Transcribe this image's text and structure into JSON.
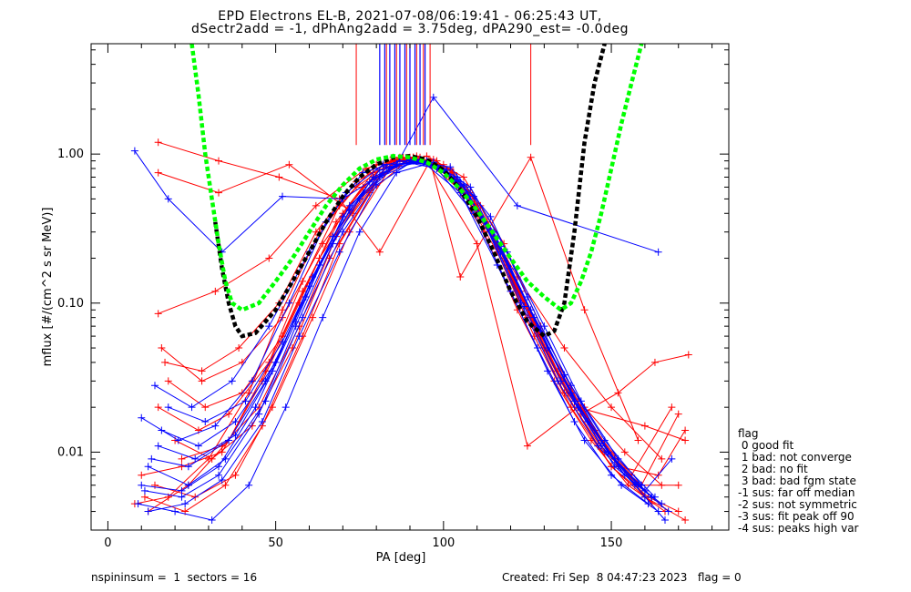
{
  "header": {
    "title_line1": "EPD Electrons EL-B, 2021-07-08/06:19:41 - 06:25:43 UT,",
    "title_line2": "dSectr2add = -1, dPhAng2add = 3.75deg, dPA290_est=  -0.0deg"
  },
  "footer": {
    "left": "nspininsum =  1  sectors = 16",
    "right": "Created: Fri Sep  8 04:47:23 2023   flag = 0"
  },
  "legend": {
    "title": "flag",
    "items": [
      " 0 good fit",
      " 1 bad: not converge",
      " 2 bad: no fit",
      " 3 bad: bad fgm state",
      "-1 sus: far off median",
      "-2 sus: not symmetric",
      "-3 sus: fit peak off 90",
      "-4 sus: peaks high var"
    ]
  },
  "colors": {
    "red_series": "#ff0000",
    "blue_series": "#0000ff",
    "fit_black": "#000000",
    "fit_green": "#00ff00",
    "axes": "#000000"
  },
  "chart_data": {
    "type": "line",
    "xlabel": "PA [deg]",
    "ylabel": "mflux [#/(cm^2 s sr MeV)]",
    "xlim": [
      -5,
      185
    ],
    "ylim": [
      0.003,
      5.5
    ],
    "yscale": "log",
    "xticks": [
      0,
      50,
      100,
      150
    ],
    "xtick_labels": [
      "0",
      "50",
      "100",
      "150"
    ],
    "yticks": [
      0.01,
      0.1,
      1.0
    ],
    "ytick_labels": [
      "0.01",
      "0.10",
      "1.00"
    ],
    "series": [
      {
        "color": "red",
        "x": [
          8,
          18,
          30,
          42,
          52,
          63,
          74,
          85,
          96,
          106,
          117,
          128,
          139,
          150,
          161,
          170
        ],
        "y": [
          0.0045,
          0.005,
          0.009,
          0.025,
          0.09,
          0.3,
          0.6,
          0.9,
          0.85,
          0.55,
          0.22,
          0.06,
          0.02,
          0.008,
          0.005,
          0.004
        ]
      },
      {
        "color": "red",
        "x": [
          15,
          27,
          36,
          48,
          58,
          69,
          80,
          91,
          101,
          112,
          122,
          133,
          144,
          155,
          166
        ],
        "y": [
          0.02,
          0.014,
          0.018,
          0.04,
          0.14,
          0.45,
          0.85,
          0.95,
          0.75,
          0.3,
          0.09,
          0.03,
          0.012,
          0.006,
          0.004
        ]
      },
      {
        "color": "red",
        "x": [
          15,
          33,
          51,
          69,
          81,
          96,
          105,
          126,
          142,
          158
        ],
        "y": [
          1.2,
          0.9,
          0.7,
          0.5,
          0.22,
          0.9,
          0.15,
          0.95,
          0.09,
          0.012
        ]
      },
      {
        "color": "red",
        "x": [
          15,
          33,
          54,
          73,
          85,
          95,
          110,
          125,
          140,
          160,
          172
        ],
        "y": [
          0.75,
          0.55,
          0.85,
          0.4,
          0.95,
          0.9,
          0.25,
          0.011,
          0.02,
          0.015,
          0.012
        ]
      },
      {
        "color": "red",
        "x": [
          15,
          32,
          48,
          62,
          77,
          88,
          99,
          110,
          122,
          136,
          150,
          165
        ],
        "y": [
          0.085,
          0.12,
          0.2,
          0.45,
          0.8,
          0.95,
          0.8,
          0.45,
          0.15,
          0.05,
          0.02,
          0.009
        ]
      },
      {
        "color": "red",
        "x": [
          16,
          28,
          40,
          52,
          64,
          76,
          87,
          98,
          109,
          120,
          131,
          142,
          154,
          165
        ],
        "y": [
          0.05,
          0.03,
          0.04,
          0.08,
          0.25,
          0.6,
          0.95,
          0.9,
          0.5,
          0.15,
          0.05,
          0.02,
          0.01,
          0.006
        ]
      },
      {
        "color": "red",
        "x": [
          12,
          24,
          36,
          47,
          58,
          70,
          82,
          93,
          104,
          116,
          127,
          138,
          150,
          160,
          172
        ],
        "y": [
          0.004,
          0.006,
          0.012,
          0.035,
          0.12,
          0.4,
          0.85,
          0.95,
          0.65,
          0.22,
          0.06,
          0.02,
          0.008,
          0.005,
          0.0035
        ]
      },
      {
        "color": "red",
        "x": [
          20,
          31,
          43,
          55,
          66,
          78,
          89,
          100,
          111,
          123,
          134,
          145,
          156,
          168
        ],
        "y": [
          0.012,
          0.009,
          0.015,
          0.05,
          0.2,
          0.55,
          0.9,
          0.85,
          0.45,
          0.12,
          0.035,
          0.014,
          0.007,
          0.02
        ]
      },
      {
        "color": "red",
        "x": [
          10,
          22,
          34,
          46,
          57,
          68,
          79,
          90,
          102,
          113,
          124,
          135,
          147,
          158,
          170
        ],
        "y": [
          0.007,
          0.008,
          0.01,
          0.03,
          0.1,
          0.35,
          0.75,
          0.95,
          0.8,
          0.35,
          0.1,
          0.03,
          0.012,
          0.006,
          0.006
        ]
      },
      {
        "color": "red",
        "x": [
          18,
          29,
          40,
          52,
          63,
          75,
          86,
          97,
          108,
          119,
          130,
          141,
          152,
          163,
          173
        ],
        "y": [
          0.03,
          0.02,
          0.025,
          0.06,
          0.2,
          0.5,
          0.9,
          0.92,
          0.55,
          0.18,
          0.05,
          0.018,
          0.025,
          0.04,
          0.045
        ]
      },
      {
        "color": "red",
        "x": [
          14,
          26,
          38,
          49,
          61,
          72,
          84,
          95,
          106,
          118,
          129,
          140,
          151,
          162
        ],
        "y": [
          0.006,
          0.005,
          0.007,
          0.02,
          0.08,
          0.3,
          0.8,
          0.97,
          0.7,
          0.25,
          0.07,
          0.022,
          0.009,
          0.0045
        ]
      },
      {
        "color": "red",
        "x": [
          22,
          34,
          45,
          57,
          68,
          80,
          91,
          102,
          114,
          125,
          136,
          148,
          159,
          170
        ],
        "y": [
          0.009,
          0.011,
          0.02,
          0.07,
          0.28,
          0.7,
          0.95,
          0.78,
          0.3,
          0.08,
          0.025,
          0.01,
          0.006,
          0.018
        ]
      },
      {
        "color": "red",
        "x": [
          11,
          23,
          35,
          46,
          58,
          69,
          81,
          92,
          103,
          115,
          126,
          137,
          149,
          160
        ],
        "y": [
          0.005,
          0.004,
          0.006,
          0.015,
          0.06,
          0.25,
          0.7,
          0.97,
          0.75,
          0.28,
          0.08,
          0.025,
          0.01,
          0.0055
        ]
      },
      {
        "color": "red",
        "x": [
          17,
          28,
          39,
          51,
          62,
          74,
          85,
          96,
          107,
          118,
          129,
          141,
          152,
          164,
          172
        ],
        "y": [
          0.04,
          0.035,
          0.05,
          0.1,
          0.3,
          0.65,
          0.92,
          0.9,
          0.6,
          0.2,
          0.06,
          0.02,
          0.008,
          0.007,
          0.014
        ]
      },
      {
        "color": "blue",
        "x": [
          8,
          18,
          34,
          52,
          70,
          86,
          97,
          122,
          164
        ],
        "y": [
          1.05,
          0.5,
          0.22,
          0.52,
          0.5,
          0.85,
          2.4,
          0.45,
          0.22
        ]
      },
      {
        "color": "blue",
        "x": [
          10,
          21,
          32,
          43,
          54,
          65,
          76,
          87,
          98,
          109,
          120,
          131,
          142,
          153,
          164
        ],
        "y": [
          0.017,
          0.012,
          0.015,
          0.03,
          0.1,
          0.35,
          0.75,
          0.9,
          0.8,
          0.4,
          0.12,
          0.035,
          0.012,
          0.006,
          0.004
        ]
      },
      {
        "color": "blue",
        "x": [
          12,
          24,
          35,
          47,
          58,
          70,
          81,
          92,
          103,
          115,
          126,
          138,
          149,
          160
        ],
        "y": [
          0.008,
          0.006,
          0.009,
          0.022,
          0.08,
          0.3,
          0.7,
          0.9,
          0.7,
          0.3,
          0.09,
          0.028,
          0.01,
          0.005
        ]
      },
      {
        "color": "blue",
        "x": [
          9,
          20,
          31,
          42,
          53,
          64,
          75,
          86,
          97,
          108,
          119,
          130,
          141,
          152,
          163
        ],
        "y": [
          0.0045,
          0.004,
          0.0035,
          0.006,
          0.02,
          0.08,
          0.3,
          0.75,
          0.88,
          0.6,
          0.22,
          0.07,
          0.022,
          0.009,
          0.005
        ]
      },
      {
        "color": "blue",
        "x": [
          14,
          25,
          37,
          48,
          60,
          71,
          82,
          94,
          105,
          116,
          128,
          139,
          150,
          161
        ],
        "y": [
          0.028,
          0.02,
          0.03,
          0.07,
          0.22,
          0.55,
          0.85,
          0.88,
          0.55,
          0.18,
          0.05,
          0.016,
          0.007,
          0.0045
        ]
      },
      {
        "color": "blue",
        "x": [
          11,
          22,
          33,
          45,
          56,
          67,
          78,
          89,
          100,
          112,
          123,
          134,
          146,
          157,
          166
        ],
        "y": [
          0.0055,
          0.005,
          0.007,
          0.018,
          0.07,
          0.25,
          0.65,
          0.9,
          0.8,
          0.35,
          0.1,
          0.03,
          0.011,
          0.006,
          0.0035
        ]
      },
      {
        "color": "blue",
        "x": [
          16,
          27,
          38,
          50,
          61,
          72,
          84,
          95,
          106,
          117,
          129,
          140,
          151,
          162
        ],
        "y": [
          0.014,
          0.011,
          0.016,
          0.04,
          0.15,
          0.45,
          0.8,
          0.9,
          0.62,
          0.22,
          0.065,
          0.02,
          0.008,
          0.005
        ]
      },
      {
        "color": "blue",
        "x": [
          13,
          24,
          36,
          47,
          59,
          70,
          81,
          93,
          104,
          115,
          127,
          138,
          149,
          160,
          168
        ],
        "y": [
          0.009,
          0.008,
          0.012,
          0.03,
          0.11,
          0.38,
          0.78,
          0.92,
          0.7,
          0.28,
          0.08,
          0.025,
          0.01,
          0.0055,
          0.009
        ]
      },
      {
        "color": "blue",
        "x": [
          18,
          29,
          41,
          52,
          63,
          75,
          86,
          97,
          109,
          120,
          131,
          143,
          154,
          165
        ],
        "y": [
          0.02,
          0.016,
          0.022,
          0.055,
          0.18,
          0.5,
          0.85,
          0.88,
          0.52,
          0.17,
          0.05,
          0.016,
          0.007,
          0.0045
        ]
      },
      {
        "color": "blue",
        "x": [
          10,
          22,
          33,
          44,
          56,
          67,
          79,
          90,
          101,
          113,
          124,
          135,
          147,
          158,
          167
        ],
        "y": [
          0.006,
          0.0055,
          0.008,
          0.02,
          0.075,
          0.28,
          0.7,
          0.92,
          0.78,
          0.32,
          0.095,
          0.03,
          0.011,
          0.006,
          0.004
        ]
      },
      {
        "color": "blue",
        "x": [
          15,
          26,
          38,
          49,
          60,
          72,
          83,
          94,
          105,
          117,
          128,
          139,
          151,
          162
        ],
        "y": [
          0.011,
          0.009,
          0.013,
          0.035,
          0.13,
          0.42,
          0.82,
          0.9,
          0.65,
          0.24,
          0.07,
          0.022,
          0.009,
          0.005
        ]
      },
      {
        "color": "blue",
        "x": [
          12,
          23,
          34,
          46,
          57,
          69,
          80,
          91,
          102,
          114,
          125,
          136,
          148,
          159
        ],
        "y": [
          0.004,
          0.0045,
          0.0065,
          0.016,
          0.06,
          0.22,
          0.62,
          0.9,
          0.82,
          0.38,
          0.11,
          0.033,
          0.012,
          0.006
        ]
      }
    ],
    "fit_lines": [
      {
        "color": "black",
        "style": "dashed",
        "x": [
          32,
          34,
          36,
          38,
          40,
          44,
          50,
          55,
          60,
          65,
          70,
          75,
          80,
          85,
          90,
          95,
          100,
          105,
          110,
          115,
          120,
          125,
          130,
          133,
          136,
          139,
          142,
          145,
          148
        ],
        "y": [
          0.35,
          0.17,
          0.1,
          0.07,
          0.06,
          0.063,
          0.09,
          0.14,
          0.22,
          0.35,
          0.52,
          0.7,
          0.85,
          0.95,
          0.97,
          0.92,
          0.78,
          0.58,
          0.38,
          0.22,
          0.12,
          0.075,
          0.06,
          0.065,
          0.1,
          0.3,
          1.2,
          3.0,
          5.5
        ]
      },
      {
        "color": "green",
        "style": "dashed",
        "x": [
          25,
          27,
          29,
          31,
          33,
          35,
          37,
          40,
          45,
          50,
          55,
          60,
          65,
          70,
          75,
          80,
          85,
          90,
          95,
          100,
          105,
          110,
          115,
          120,
          125,
          130,
          135,
          138,
          141,
          144,
          147,
          150,
          153,
          156,
          159
        ],
        "y": [
          5.5,
          2.5,
          1.0,
          0.5,
          0.25,
          0.14,
          0.1,
          0.09,
          0.1,
          0.14,
          0.2,
          0.3,
          0.45,
          0.62,
          0.8,
          0.92,
          0.97,
          0.95,
          0.88,
          0.75,
          0.58,
          0.42,
          0.29,
          0.2,
          0.14,
          0.11,
          0.09,
          0.1,
          0.14,
          0.22,
          0.4,
          0.8,
          1.6,
          3.0,
          5.5
        ]
      }
    ],
    "vertical_markers": {
      "red_x": [
        74,
        126,
        83,
        86,
        89,
        92,
        94,
        96
      ],
      "blue_x": [
        81,
        82.5,
        84,
        85.5,
        87,
        88.5,
        90,
        91.5,
        93,
        94.5
      ],
      "y_from": 1.15,
      "y_to": 5.5
    },
    "grid": false,
    "legend_position": "right-bottom"
  }
}
